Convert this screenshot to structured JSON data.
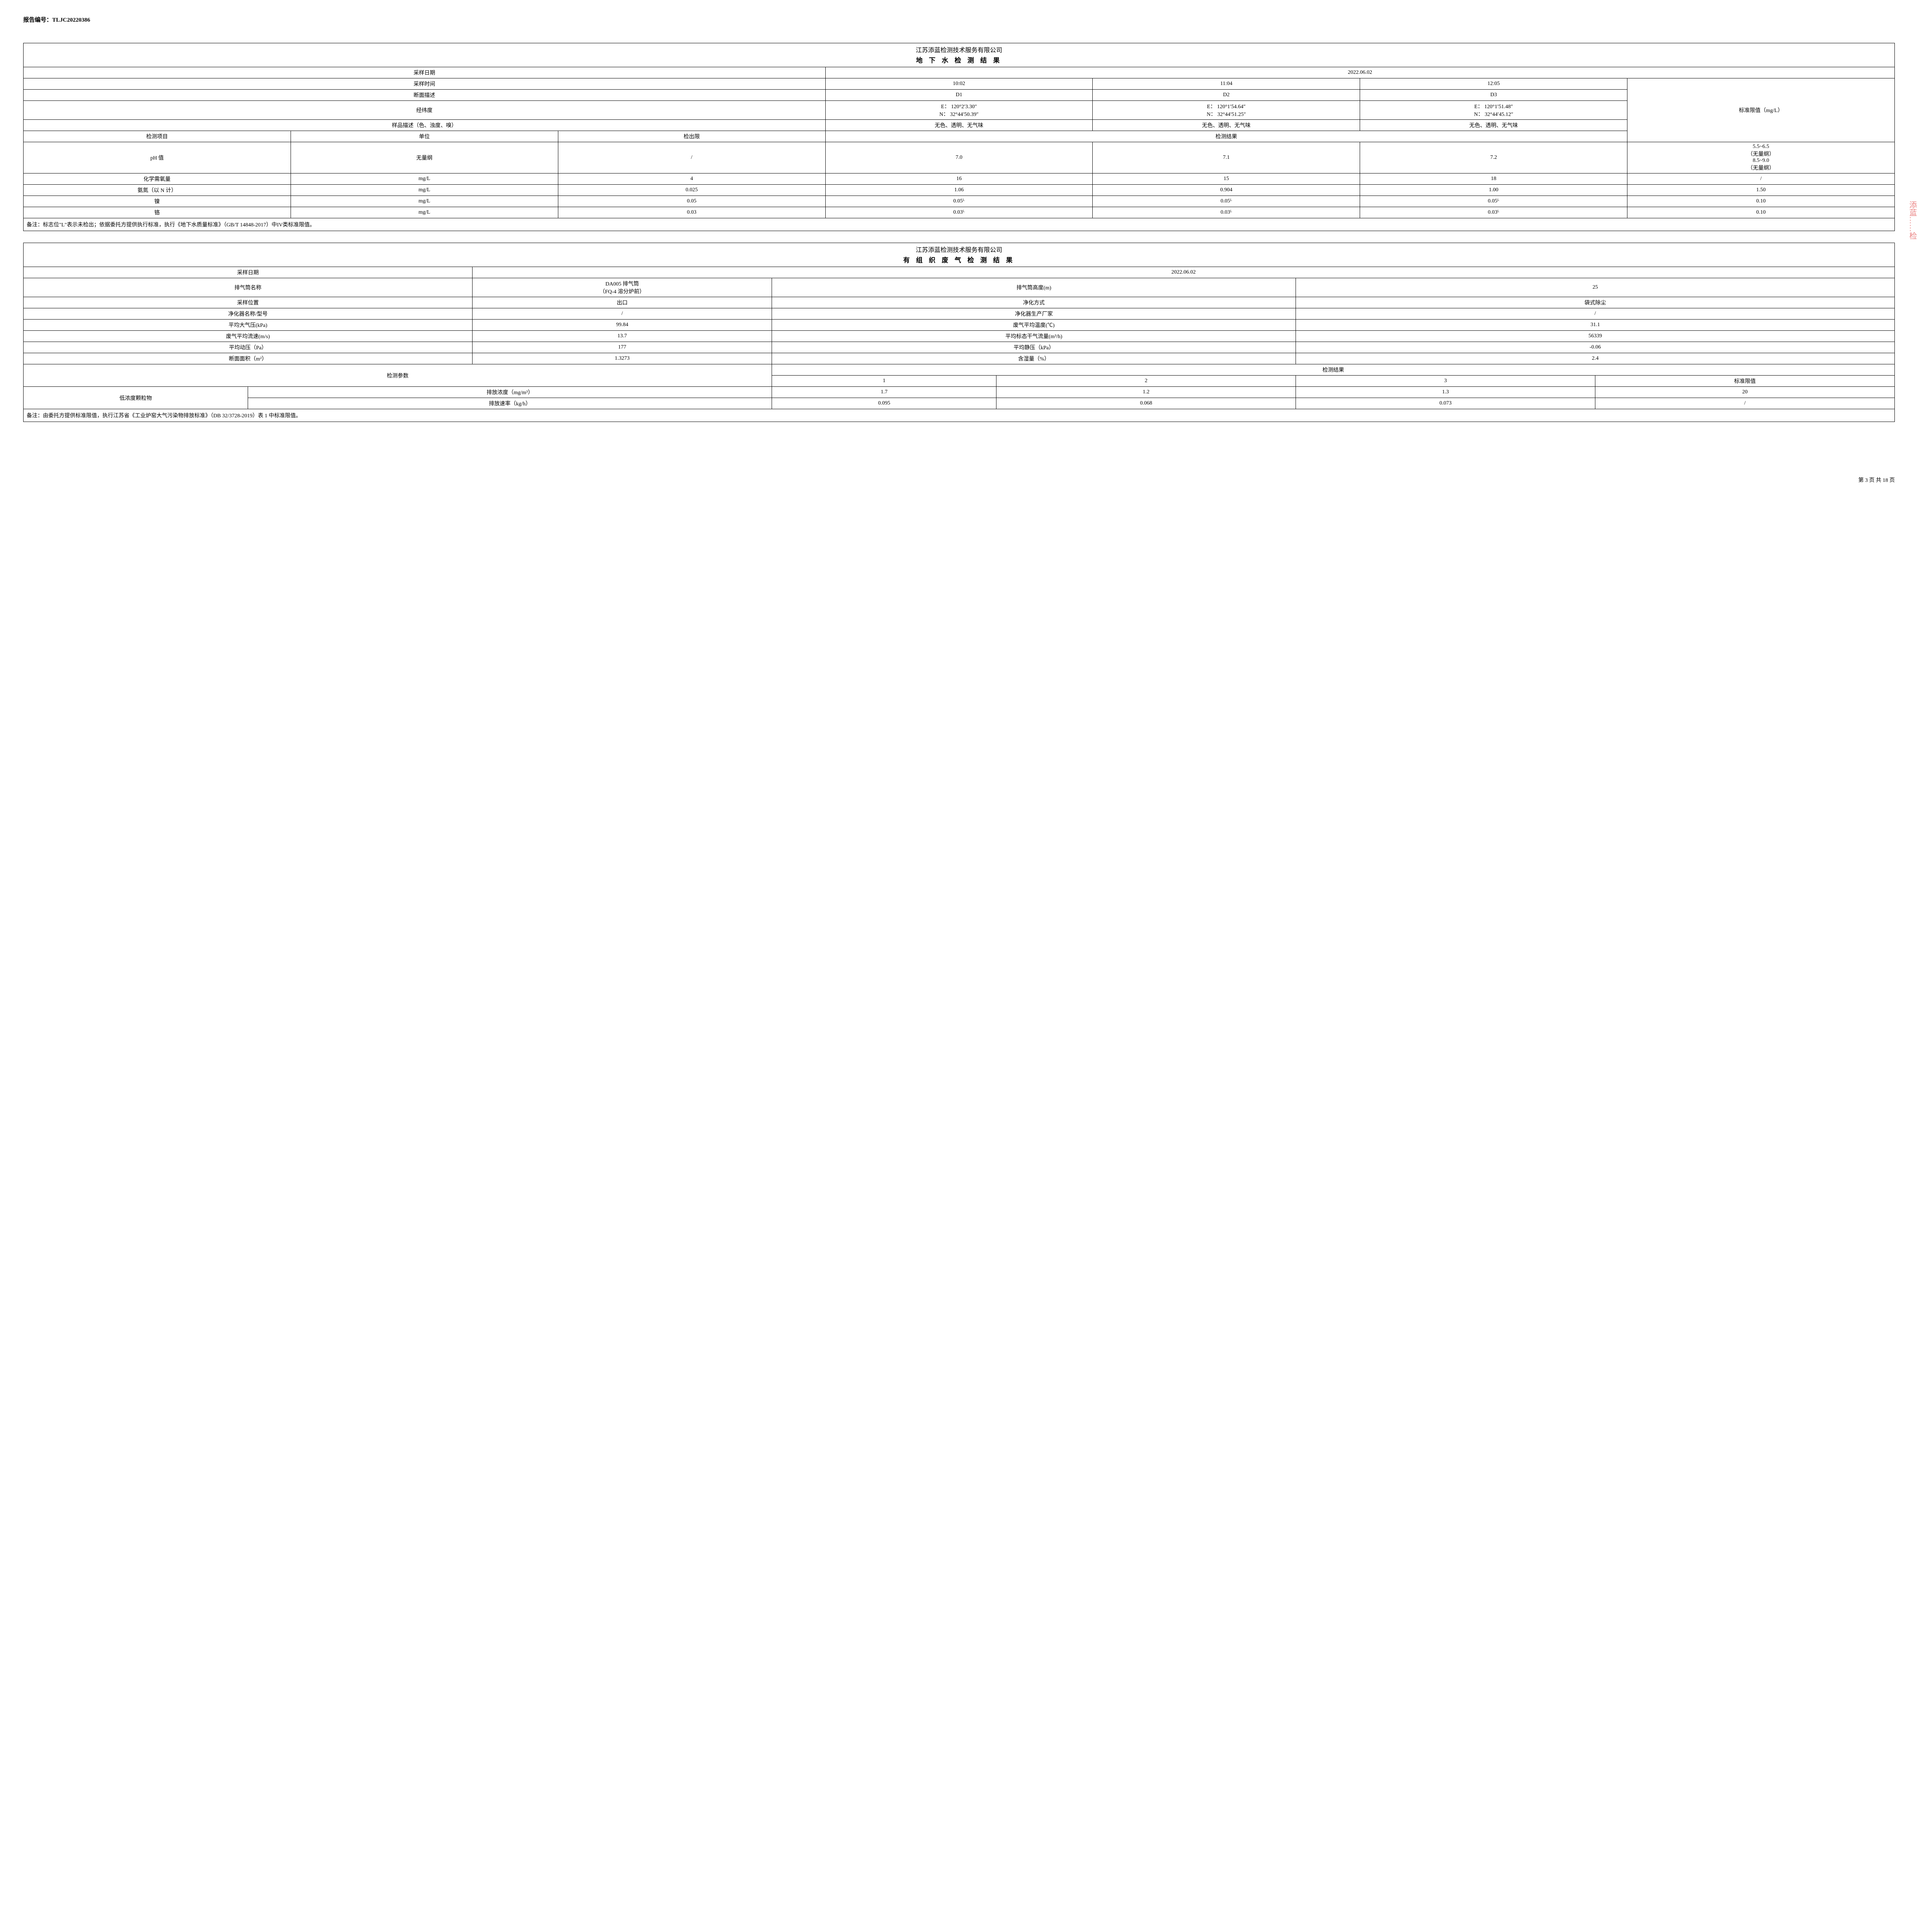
{
  "report_no_label": "报告编号：",
  "report_no": "TLJC20220386",
  "company": "江苏添蓝检测技术服务有限公司",
  "stamp_text": "添蓝……检",
  "footer": "第 3 页 共 18 页",
  "gw": {
    "title": "地 下 水 检 测 结 果",
    "headers": {
      "sample_date": "采样日期",
      "sample_time": "采样时间",
      "section_desc": "断面描述",
      "lonlat": "经纬度",
      "sample_desc": "样品描述（色、浊度、嗅）",
      "test_item": "检测项目",
      "unit": "单位",
      "det_limit": "检出限",
      "test_result": "检测结果",
      "std_limit": "标准限值（mg/L）"
    },
    "sample_date": "2022.06.02",
    "cols": [
      {
        "time": "10:02",
        "desc": "D1",
        "lonlat": "E： 120°2′3.30″\nN： 32°44′50.39″",
        "sample": "无色、透明、无气味"
      },
      {
        "time": "11:04",
        "desc": "D2",
        "lonlat": "E： 120°1′54.64″\nN： 32°44′51.25″",
        "sample": "无色、透明、无气味"
      },
      {
        "time": "12:05",
        "desc": "D3",
        "lonlat": "E： 120°1′51.48″\nN： 32°44′45.12″",
        "sample": "无色、透明、无气味"
      }
    ],
    "rows": [
      {
        "item": "pH 值",
        "unit": "无量纲",
        "dl": "/",
        "v": [
          "7.0",
          "7.1",
          "7.2"
        ],
        "std": "5.5~6.5\n（无量纲）\n8.5~9.0\n（无量纲）"
      },
      {
        "item": "化学需氧量",
        "unit": "mg/L",
        "dl": "4",
        "v": [
          "16",
          "15",
          "18"
        ],
        "std": "/"
      },
      {
        "item": "氨氮（以 N 计）",
        "unit": "mg/L",
        "dl": "0.025",
        "v": [
          "1.06",
          "0.904",
          "1.00"
        ],
        "std": "1.50"
      },
      {
        "item": "镍",
        "unit": "mg/L",
        "dl": "0.05",
        "v": [
          "0.05ᴸ",
          "0.05ᴸ",
          "0.05ᴸ"
        ],
        "std": "0.10"
      },
      {
        "item": "铬",
        "unit": "mg/L",
        "dl": "0.03",
        "v": [
          "0.03ᴸ",
          "0.03ᴸ",
          "0.03ᴸ"
        ],
        "std": "0.10"
      }
    ],
    "note": "备注：标志位\"L\"表示未检出；依据委托方提供执行标准，执行《地下水质量标准》（GB/T 14848-2017）中IV类标准限值。"
  },
  "ex": {
    "title": "有 组 织 废 气 检 测 结 果",
    "labels": {
      "sample_date": "采样日期",
      "stack_name": "排气筒名称",
      "stack_height": "排气筒高度(m)",
      "sample_pos": "采样位置",
      "purify_method": "净化方式",
      "purifier_name": "净化器名称/型号",
      "purifier_maker": "净化器生产厂家",
      "avg_pressure": "平均大气压(kPa)",
      "avg_temp": "废气平均温度(℃)",
      "avg_velocity": "废气平均流速(m/s)",
      "avg_flow": "平均标态干气流量(m³/h)",
      "avg_dyn": "平均动压（Pa）",
      "avg_static": "平均静压（kPa）",
      "area": "断面面积（m²）",
      "humidity": "含湿量（%）",
      "param": "检测参数",
      "result": "检测结果",
      "std": "标准限值"
    },
    "sample_date": "2022.06.02",
    "stack_name": "DA005 排气筒\n（FQ-4 溶分炉前）",
    "stack_height": "25",
    "sample_pos": "出口",
    "purify_method": "袋式除尘",
    "purifier_name": "/",
    "purifier_maker": "/",
    "avg_pressure": "99.84",
    "avg_temp": "31.1",
    "avg_velocity": "13.7",
    "avg_flow": "56339",
    "avg_dyn": "177",
    "avg_static": "-0.06",
    "area": "1.3273",
    "humidity": "2.4",
    "result_cols": [
      "1",
      "2",
      "3"
    ],
    "param_name": "低浓度颗粒物",
    "rows": [
      {
        "label": "排放浓度（mg/m³）",
        "v": [
          "1.7",
          "1.2",
          "1.3"
        ],
        "std": "20"
      },
      {
        "label": "排放速率（kg/h）",
        "v": [
          "0.095",
          "0.068",
          "0.073"
        ],
        "std": "/"
      }
    ],
    "note": "备注：由委托方提供标准限值，执行江苏省《工业炉窑大气污染物排放标准》（DB 32/3728-2019）表 1 中标准限值。"
  }
}
